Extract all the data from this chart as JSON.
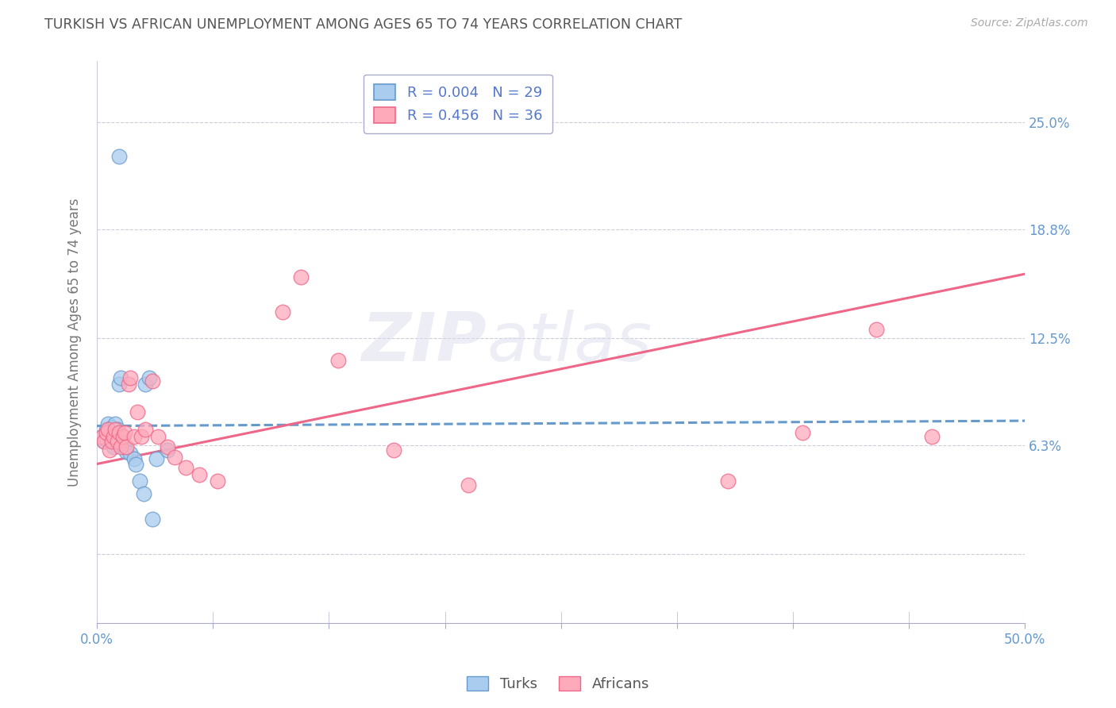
{
  "title": "TURKISH VS AFRICAN UNEMPLOYMENT AMONG AGES 65 TO 74 YEARS CORRELATION CHART",
  "source": "Source: ZipAtlas.com",
  "ylabel": "Unemployment Among Ages 65 to 74 years",
  "background_color": "#ffffff",
  "title_color": "#555555",
  "legend_label1": "R = 0.004   N = 29",
  "legend_label2": "R = 0.456   N = 36",
  "turks_color": "#aaccee",
  "africans_color": "#ffaabb",
  "trendline_turks_color": "#6699cc",
  "trendline_africans_color": "#ee6688",
  "watermark_line1": "ZIP",
  "watermark_line2": "atlas",
  "xlim": [
    0.0,
    0.5
  ],
  "ylim": [
    -0.04,
    0.285
  ],
  "ytick_vals": [
    0.0,
    0.063,
    0.125,
    0.188,
    0.25
  ],
  "ytick_labels_right": [
    "",
    "6.3%",
    "12.5%",
    "18.8%",
    "25.0%"
  ],
  "xtick_vals": [
    0.0,
    0.0625,
    0.125,
    0.1875,
    0.25,
    0.3125,
    0.375,
    0.4375,
    0.5
  ],
  "xtick_labels": [
    "0.0%",
    "",
    "",
    "",
    "",
    "",
    "",
    "",
    "50.0%"
  ],
  "turks_x": [
    0.003,
    0.004,
    0.005,
    0.005,
    0.006,
    0.006,
    0.007,
    0.008,
    0.008,
    0.009,
    0.01,
    0.01,
    0.011,
    0.012,
    0.013,
    0.014,
    0.015,
    0.016,
    0.018,
    0.02,
    0.021,
    0.023,
    0.025,
    0.026,
    0.028,
    0.03,
    0.032,
    0.038,
    0.012
  ],
  "turks_y": [
    0.068,
    0.065,
    0.072,
    0.066,
    0.07,
    0.075,
    0.068,
    0.073,
    0.065,
    0.062,
    0.07,
    0.075,
    0.072,
    0.098,
    0.102,
    0.068,
    0.062,
    0.059,
    0.058,
    0.055,
    0.052,
    0.042,
    0.035,
    0.098,
    0.102,
    0.02,
    0.055,
    0.06,
    0.23
  ],
  "africans_x": [
    0.003,
    0.004,
    0.005,
    0.006,
    0.007,
    0.008,
    0.009,
    0.01,
    0.011,
    0.012,
    0.013,
    0.014,
    0.015,
    0.016,
    0.017,
    0.018,
    0.02,
    0.022,
    0.024,
    0.026,
    0.03,
    0.033,
    0.038,
    0.042,
    0.048,
    0.055,
    0.065,
    0.1,
    0.11,
    0.13,
    0.16,
    0.2,
    0.34,
    0.38,
    0.42,
    0.45
  ],
  "africans_y": [
    0.068,
    0.065,
    0.07,
    0.072,
    0.06,
    0.065,
    0.068,
    0.072,
    0.065,
    0.07,
    0.062,
    0.068,
    0.07,
    0.062,
    0.098,
    0.102,
    0.068,
    0.082,
    0.068,
    0.072,
    0.1,
    0.068,
    0.062,
    0.056,
    0.05,
    0.046,
    0.042,
    0.14,
    0.16,
    0.112,
    0.06,
    0.04,
    0.042,
    0.07,
    0.13,
    0.068
  ],
  "turks_trend_x": [
    0.0,
    0.5
  ],
  "turks_trend_y": [
    0.074,
    0.077
  ],
  "africans_trend_x": [
    0.0,
    0.5
  ],
  "africans_trend_y": [
    0.052,
    0.162
  ]
}
